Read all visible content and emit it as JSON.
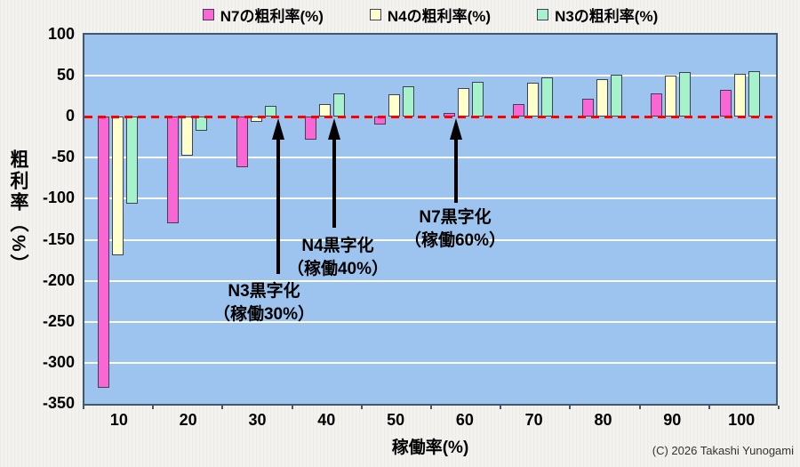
{
  "legend": {
    "items": [
      {
        "label": "N7の粗利率(%)",
        "color": "#fa66d4"
      },
      {
        "label": "N4の粗利率(%)",
        "color": "#ffffcc"
      },
      {
        "label": "N3の粗利率(%)",
        "color": "#a5f2cb"
      }
    ]
  },
  "axes": {
    "y_title": "粗利率（%）",
    "x_title": "稼働率(%)"
  },
  "annotations": {
    "n3": {
      "line1": "N3黒字化",
      "line2": "（稼働30%）"
    },
    "n4": {
      "line1": "N4黒字化",
      "line2": "（稼働40%）"
    },
    "n7": {
      "line1": "N7黒字化",
      "line2": "（稼働60%）"
    }
  },
  "copyright": "(C) 2026 Takashi Yunogami",
  "chart_data": {
    "type": "bar",
    "title": "",
    "xlabel": "稼働率(%)",
    "ylabel": "粗利率（%）",
    "categories": [
      10,
      20,
      30,
      40,
      50,
      60,
      70,
      80,
      90,
      100
    ],
    "series": [
      {
        "name": "N7の粗利率(%)",
        "color": "#fa66d4",
        "values": [
          -330,
          -130,
          -62,
          -28,
          -10,
          5,
          15,
          22,
          28,
          33
        ]
      },
      {
        "name": "N4の粗利率(%)",
        "color": "#ffffcc",
        "values": [
          -169,
          -47,
          -6,
          15,
          27,
          35,
          41,
          46,
          50,
          52
        ]
      },
      {
        "name": "N3の粗利率(%)",
        "color": "#a5f2cb",
        "values": [
          -106,
          -17,
          13,
          28,
          37,
          43,
          48,
          51,
          54,
          56
        ]
      }
    ],
    "ylim": [
      -350,
      100
    ],
    "yticks": [
      100,
      50,
      0,
      -50,
      -100,
      -150,
      -200,
      -250,
      -300,
      -350
    ],
    "grid": true,
    "legend_position": "top",
    "plot_bg": "#9cc4ee",
    "zero_line": {
      "color": "#ff0000",
      "style": "dashed"
    },
    "breakeven_points": [
      {
        "series": "N3",
        "utilization": 30
      },
      {
        "series": "N4",
        "utilization": 40
      },
      {
        "series": "N7",
        "utilization": 60
      }
    ]
  }
}
